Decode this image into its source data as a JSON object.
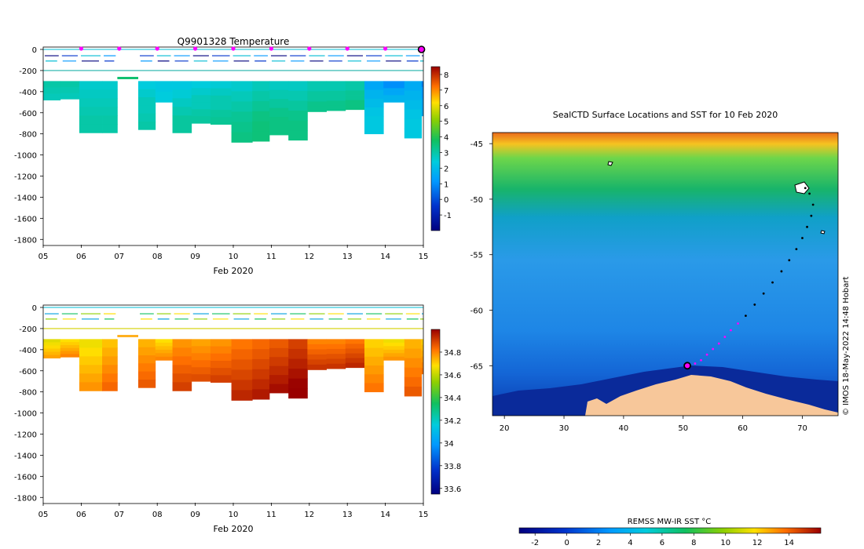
{
  "credit": "© IMOS 18-May-2022 14:48 Hobart",
  "chart_data": [
    {
      "id": "temperature",
      "type": "heatmap",
      "title": "Q9901328  Temperature",
      "xlabel": "Feb 2020",
      "ylabel": "",
      "x_ticks": [
        "05",
        "06",
        "07",
        "08",
        "09",
        "10",
        "11",
        "12",
        "13",
        "14",
        "15"
      ],
      "x_range_day": [
        5,
        15
      ],
      "y_ticks": [
        0,
        -200,
        -400,
        -600,
        -800,
        -1000,
        -1200,
        -1400,
        -1600,
        -1800
      ],
      "ylim": [
        -1850,
        0
      ],
      "marker_days": [
        6,
        7,
        8,
        9,
        10,
        11,
        12,
        13,
        14
      ],
      "profile_days": [
        5.0,
        5.45,
        5.95,
        6.55,
        6.95,
        7.5,
        7.95,
        8.4,
        8.9,
        9.4,
        9.95,
        10.5,
        10.95,
        11.45,
        11.95,
        12.45,
        12.95,
        13.45,
        13.95,
        14.5,
        14.95
      ],
      "profile_bottom_depth": [
        -480,
        -470,
        -790,
        -790,
        -270,
        -760,
        -500,
        -790,
        -700,
        -710,
        -880,
        -870,
        -810,
        -860,
        -590,
        -580,
        -570,
        -800,
        -500,
        -840,
        -630
      ],
      "values_at_depth": {
        "depths": [
          -300,
          -400,
          -500,
          -600,
          -700,
          -800
        ],
        "profiles": [
          [
            3.0,
            2.9,
            2.8
          ],
          [
            3.0,
            2.9,
            2.8
          ],
          [
            2.6,
            2.7,
            2.8,
            2.9,
            3.0,
            3.0
          ],
          [
            2.6,
            2.7,
            2.8,
            2.9,
            3.0,
            3.0
          ],
          [],
          [
            2.4,
            2.6,
            2.8,
            2.9,
            3.0
          ],
          [
            2.3,
            2.4
          ],
          [
            2.3,
            2.5,
            2.7,
            2.9,
            3.1,
            3.1
          ],
          [
            2.4,
            2.6,
            2.8,
            3.0,
            3.1
          ],
          [
            2.5,
            2.7,
            2.9,
            3.1,
            3.2
          ],
          [
            2.6,
            2.8,
            3.0,
            3.2,
            3.3,
            3.4
          ],
          [
            2.8,
            3.0,
            3.2,
            3.4,
            3.5,
            3.5
          ],
          [
            2.7,
            2.9,
            3.1,
            3.3,
            3.4,
            3.4
          ],
          [
            2.7,
            2.9,
            3.1,
            3.3,
            3.4,
            3.4
          ],
          [
            2.9,
            3.1,
            3.3
          ],
          [
            2.9,
            3.1,
            3.3
          ],
          [
            3.0,
            3.2,
            3.4
          ],
          [
            1.5,
            1.8,
            2.0,
            2.2,
            2.3,
            2.3
          ],
          [
            1.0,
            1.5,
            1.8
          ],
          [
            1.6,
            1.8,
            2.0,
            2.2,
            2.3,
            2.3
          ],
          [
            0.8,
            1.2,
            1.5,
            1.6
          ]
        ]
      },
      "colorbar": {
        "min": -2,
        "max": 8.5,
        "ticks": [
          8,
          7,
          6,
          5,
          4,
          3,
          2,
          1,
          0,
          -1
        ]
      }
    },
    {
      "id": "salinity",
      "type": "heatmap",
      "title": "",
      "xlabel": "Feb 2020",
      "ylabel": "",
      "x_ticks": [
        "05",
        "06",
        "07",
        "08",
        "09",
        "10",
        "11",
        "12",
        "13",
        "14",
        "15"
      ],
      "x_range_day": [
        5,
        15
      ],
      "y_ticks": [
        0,
        -200,
        -400,
        -600,
        -800,
        -1000,
        -1200,
        -1400,
        -1600,
        -1800
      ],
      "ylim": [
        -1850,
        0
      ],
      "profile_days": [
        5.0,
        5.45,
        5.95,
        6.55,
        6.95,
        7.5,
        7.95,
        8.4,
        8.9,
        9.4,
        9.95,
        10.5,
        10.95,
        11.45,
        11.95,
        12.45,
        12.95,
        13.45,
        13.95,
        14.5,
        14.95
      ],
      "profile_bottom_depth": [
        -480,
        -470,
        -790,
        -790,
        -270,
        -760,
        -500,
        -790,
        -700,
        -710,
        -880,
        -870,
        -810,
        -860,
        -590,
        -580,
        -570,
        -800,
        -500,
        -840,
        -630
      ],
      "colorbar": {
        "min": 33.55,
        "max": 35.0,
        "ticks": [
          34.8,
          34.6,
          34.4,
          34.2,
          34,
          33.8,
          33.6
        ]
      }
    },
    {
      "id": "sst_map",
      "type": "heatmap",
      "title": "SealCTD Surface Locations and SST for 10 Feb 2020",
      "x_ticks": [
        20,
        30,
        40,
        50,
        60,
        70
      ],
      "xlim": [
        18,
        76
      ],
      "y_ticks": [
        -45,
        -50,
        -55,
        -60,
        -65
      ],
      "ylim": [
        -69.5,
        -44
      ],
      "colorbar_label": "REMSS MW-IR SST °C",
      "colorbar": {
        "min": -3,
        "max": 16,
        "ticks": [
          -2,
          0,
          2,
          4,
          6,
          8,
          10,
          12,
          14
        ]
      },
      "track_lon": [
        70.5,
        71.2,
        71.8,
        71.5,
        70.8,
        70.0,
        69.0,
        67.8,
        66.5,
        65.0,
        63.5,
        62.0,
        60.5,
        59.2,
        58.0,
        57.0,
        56.0,
        55.0,
        54.0,
        53.0,
        52.0,
        51.0
      ],
      "track_lat": [
        -49.0,
        -49.5,
        -50.5,
        -51.5,
        -52.5,
        -53.5,
        -54.5,
        -55.5,
        -56.5,
        -57.5,
        -58.5,
        -59.5,
        -60.5,
        -61.2,
        -61.8,
        -62.4,
        -63.0,
        -63.5,
        -64.0,
        -64.5,
        -64.8,
        -65.0
      ],
      "track_recent_start_index": 13,
      "current_position": {
        "lon": 50.7,
        "lat": -65.0
      }
    }
  ]
}
